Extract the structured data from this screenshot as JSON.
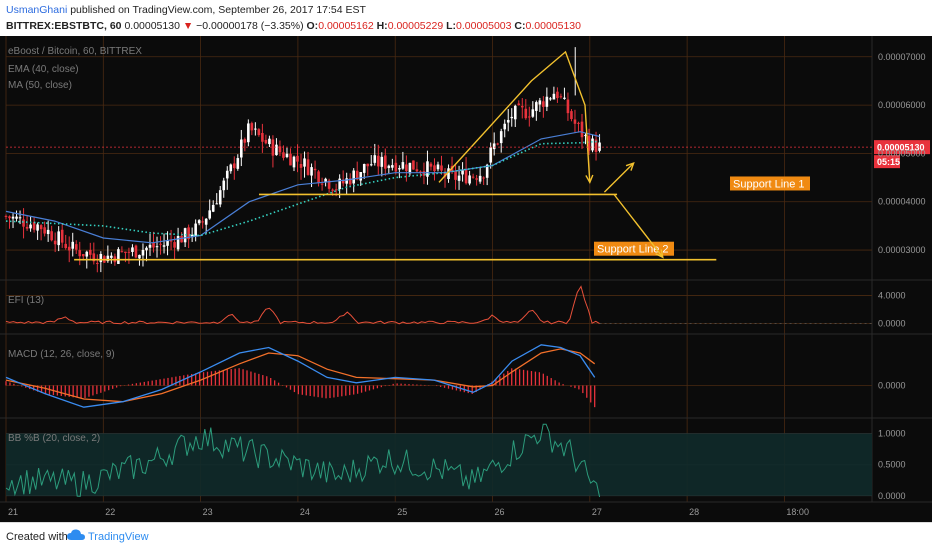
{
  "header": {
    "user": "UsmanGhani",
    "published": " published on TradingView.com, September 26, 2017 17:54 EST",
    "symbol": "BITTREX:EBSTBTC, 60",
    "price": "0.00005130",
    "change": "−0.00000178 (−3.35%)",
    "o_label": "O:",
    "o_val": "0.00005162",
    "h_label": "H:",
    "h_val": "0.00005229",
    "l_label": "L:",
    "l_val": "0.00005003",
    "c_label": "C:",
    "c_val": "0.00005130"
  },
  "footer": {
    "created": "Created with",
    "brand": "TradingView"
  },
  "colors": {
    "bg": "#0b0b0b",
    "grid": "#4a2a12",
    "bull": "#ffffff",
    "bear": "#e8323c",
    "ema": "#4a7fd6",
    "ma": "#35d0c0",
    "annot": "#f2c12e",
    "tag": "#f08a12",
    "macd": "#3a8cf0",
    "signal": "#f2702a",
    "hist": "#e8323c",
    "bb": "#2c9c7c",
    "efi": "#e8503a"
  },
  "chart_data": [
    {
      "type": "candlestick",
      "title": "eBoost / Bitcoin, 60, BITTREX",
      "legend": [
        "EMA (40, close)",
        "MA (50, close)"
      ],
      "x_ticks": [
        "21",
        "22",
        "23",
        "24",
        "25",
        "26",
        "27",
        "28",
        "18:00"
      ],
      "y_ticks": [
        3e-05,
        4e-05,
        5e-05,
        6e-05,
        7e-05
      ],
      "y_tick_labels": [
        "0.00003000",
        "0.00004000",
        "0.00005000",
        "0.00006000",
        "0.00007000"
      ],
      "ylim": [
        2.38e-05,
        7.43e-05
      ],
      "xlim": [
        0,
        8.9
      ],
      "last_price_label": "0.00005130",
      "countdown_label": "05:15",
      "last_price": 5.13e-05,
      "close_anchors": [
        [
          0,
          3.7
        ],
        [
          0.35,
          3.5
        ],
        [
          0.7,
          3.0
        ],
        [
          1.0,
          2.85
        ],
        [
          1.35,
          3.0
        ],
        [
          1.6,
          3.1
        ],
        [
          1.85,
          3.3
        ],
        [
          2.0,
          3.5
        ],
        [
          2.25,
          4.4
        ],
        [
          2.5,
          5.5
        ],
        [
          2.75,
          5.1
        ],
        [
          3.05,
          4.8
        ],
        [
          3.4,
          4.3
        ],
        [
          3.75,
          4.8
        ],
        [
          4.0,
          4.8
        ],
        [
          4.3,
          4.7
        ],
        [
          4.6,
          4.5
        ],
        [
          4.9,
          4.6
        ],
        [
          5.0,
          5.1
        ],
        [
          5.2,
          5.8
        ],
        [
          5.4,
          5.9
        ],
        [
          5.65,
          6.3
        ],
        [
          5.85,
          5.6
        ],
        [
          6.0,
          5.2
        ],
        [
          6.1,
          5.13
        ]
      ],
      "ema": [
        [
          0,
          3.8
        ],
        [
          0.5,
          3.6
        ],
        [
          1.0,
          3.25
        ],
        [
          1.5,
          3.15
        ],
        [
          2.0,
          3.3
        ],
        [
          2.5,
          4.0
        ],
        [
          3.0,
          4.35
        ],
        [
          3.5,
          4.45
        ],
        [
          4.0,
          4.6
        ],
        [
          4.5,
          4.6
        ],
        [
          5.0,
          4.75
        ],
        [
          5.5,
          5.3
        ],
        [
          5.9,
          5.45
        ],
        [
          6.1,
          5.35
        ]
      ],
      "ma": [
        [
          0,
          3.6
        ],
        [
          0.5,
          3.55
        ],
        [
          1.0,
          3.5
        ],
        [
          1.5,
          3.35
        ],
        [
          2.0,
          3.3
        ],
        [
          2.5,
          3.6
        ],
        [
          3.0,
          3.95
        ],
        [
          3.5,
          4.3
        ],
        [
          4.0,
          4.5
        ],
        [
          4.5,
          4.6
        ],
        [
          5.0,
          4.75
        ],
        [
          5.5,
          5.2
        ],
        [
          5.9,
          5.22
        ],
        [
          6.1,
          5.25
        ]
      ],
      "support_lines": [
        {
          "label": "Support Line 1",
          "x0": 2.6,
          "x1": 6.28,
          "y": 4.15
        },
        {
          "label": "Support Line 2",
          "x0": 0.7,
          "x1": 7.3,
          "y": 2.8
        }
      ],
      "arrows": [
        [
          [
            4.45,
            4.4
          ],
          [
            5.4,
            6.5
          ],
          [
            5.75,
            7.1
          ],
          [
            5.95,
            6.0
          ],
          [
            6.0,
            4.4
          ]
        ],
        [
          [
            6.15,
            4.2
          ],
          [
            6.45,
            4.8
          ]
        ],
        [
          [
            6.25,
            4.15
          ],
          [
            6.75,
            2.85
          ]
        ]
      ]
    },
    {
      "type": "line",
      "title": "EFI (13)",
      "y_tick_labels": [
        "4.0000",
        "0.0000"
      ],
      "ylim": [
        -1.5,
        6.2
      ],
      "peaks": [
        [
          0.6,
          0.8
        ],
        [
          2.3,
          1.2
        ],
        [
          2.7,
          2.3
        ],
        [
          3.5,
          1.6
        ],
        [
          5.0,
          1.0
        ],
        [
          5.4,
          1.8
        ],
        [
          5.9,
          5.5
        ]
      ]
    },
    {
      "type": "line",
      "title": "MACD (12, 26, close, 9)",
      "y_tick_labels": [
        "0.0000"
      ],
      "macd": [
        [
          0,
          0.3
        ],
        [
          0.4,
          -0.3
        ],
        [
          0.8,
          -0.8
        ],
        [
          1.2,
          -0.6
        ],
        [
          1.6,
          -0.15
        ],
        [
          2.0,
          0.5
        ],
        [
          2.4,
          1.2
        ],
        [
          2.7,
          1.4
        ],
        [
          3.0,
          0.9
        ],
        [
          3.3,
          0.3
        ],
        [
          3.6,
          0.1
        ],
        [
          4.0,
          0.3
        ],
        [
          4.4,
          0.2
        ],
        [
          4.8,
          -0.25
        ],
        [
          5.0,
          0.1
        ],
        [
          5.2,
          0.9
        ],
        [
          5.5,
          1.5
        ],
        [
          5.7,
          1.4
        ],
        [
          5.9,
          1.1
        ],
        [
          6.05,
          0.3
        ]
      ],
      "signal": [
        [
          0,
          0.2
        ],
        [
          0.4,
          -0.1
        ],
        [
          0.8,
          -0.5
        ],
        [
          1.2,
          -0.6
        ],
        [
          1.6,
          -0.3
        ],
        [
          2.0,
          0.2
        ],
        [
          2.4,
          0.8
        ],
        [
          2.7,
          1.2
        ],
        [
          3.0,
          1.1
        ],
        [
          3.3,
          0.6
        ],
        [
          3.6,
          0.3
        ],
        [
          4.0,
          0.25
        ],
        [
          4.4,
          0.2
        ],
        [
          4.8,
          -0.05
        ],
        [
          5.0,
          0.0
        ],
        [
          5.2,
          0.5
        ],
        [
          5.5,
          1.2
        ],
        [
          5.7,
          1.35
        ],
        [
          5.9,
          1.2
        ],
        [
          6.05,
          0.8
        ]
      ],
      "ylim": [
        -1.2,
        1.9
      ]
    },
    {
      "type": "line",
      "title": "BB %B (20, close, 2)",
      "y_tick_labels": [
        "1.0000",
        "0.5000",
        "0.0000"
      ],
      "ylim": [
        -0.1,
        1.25
      ],
      "band": [
        0,
        1
      ],
      "mid": 0.5
    }
  ]
}
